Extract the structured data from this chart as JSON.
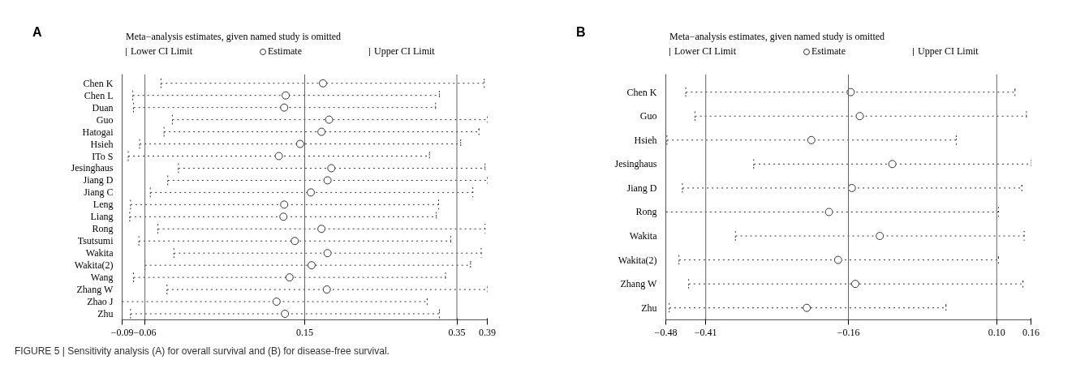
{
  "chart_data": [
    {
      "type": "scatter",
      "orientation": "horizontal",
      "title": "A",
      "subtitle": "Meta−analysis estimates, given named study is omitted",
      "categories": [
        "Chen K",
        "Chen L",
        "Duan",
        "Guo",
        "Hatogai",
        "Hsieh",
        "ITo S",
        "Jesinghaus",
        "Jiang D",
        "Jiang C",
        "Leng",
        "Liang",
        "Rong",
        "Tsutsumi",
        "Wakita",
        "Wakita(2)",
        "Wang",
        "Zhang W",
        "Zhao J",
        "Zhu"
      ],
      "series": [
        {
          "name": "Estimate",
          "color": "#333333",
          "values": [
            0.174,
            0.125,
            0.123,
            0.182,
            0.172,
            0.144,
            0.116,
            0.185,
            0.18,
            0.158,
            0.123,
            0.122,
            0.172,
            0.137,
            0.18,
            0.159,
            0.13,
            0.179,
            0.113,
            0.124
          ],
          "errors": [
            [
              -0.039,
              0.386
            ],
            [
              -0.076,
              0.327
            ],
            [
              -0.075,
              0.322
            ],
            [
              -0.024,
              0.39
            ],
            [
              -0.035,
              0.379
            ],
            [
              -0.067,
              0.355
            ],
            [
              -0.082,
              0.314
            ],
            [
              -0.016,
              0.387
            ],
            [
              -0.03,
              0.39
            ],
            [
              -0.053,
              0.371
            ],
            [
              -0.079,
              0.326
            ],
            [
              -0.08,
              0.323
            ],
            [
              -0.043,
              0.387
            ],
            [
              -0.068,
              0.342
            ],
            [
              -0.022,
              0.382
            ],
            [
              -0.06,
              0.368
            ],
            [
              -0.075,
              0.335
            ],
            [
              -0.031,
              0.39
            ],
            [
              -0.09,
              0.311
            ],
            [
              -0.079,
              0.327
            ]
          ]
        }
      ],
      "xlim": [
        -0.09,
        0.39
      ],
      "xticks": [
        {
          "value": -0.09,
          "label": "−0.09"
        },
        {
          "value": -0.06,
          "label": "−0.06"
        },
        0.15,
        0.35,
        0.39
      ],
      "ref_lines": [
        {
          "axis": "x",
          "value": -0.06,
          "color": "#666666"
        },
        {
          "axis": "x",
          "value": 0.15,
          "color": "#666666"
        },
        {
          "axis": "x",
          "value": 0.35,
          "color": "#666666"
        }
      ],
      "marker": "circle",
      "line_style": "dotted",
      "grid": false,
      "legend": "top",
      "annotations": [
        "Lower CI Limit",
        "Upper CI Limit"
      ]
    },
    {
      "type": "scatter",
      "orientation": "horizontal",
      "title": "B",
      "subtitle": "Meta−analysis estimates, given named study is omitted",
      "categories": [
        "Chen K",
        "Guo",
        "Hsieh",
        "Jesinghaus",
        "Jiang D",
        "Rong",
        "Wakita",
        "Wakita(2)",
        "Zhang W",
        "Zhu"
      ],
      "series": [
        {
          "name": "Estimate",
          "color": "#333333",
          "values": [
            -0.156,
            -0.14,
            -0.225,
            -0.083,
            -0.154,
            -0.194,
            -0.105,
            -0.178,
            -0.148,
            -0.233
          ],
          "errors": [
            [
              -0.445,
              0.132
            ],
            [
              -0.429,
              0.152
            ],
            [
              -0.478,
              0.029
            ],
            [
              -0.326,
              0.16
            ],
            [
              -0.451,
              0.144
            ],
            [
              -0.48,
              0.103
            ],
            [
              -0.358,
              0.148
            ],
            [
              -0.457,
              0.103
            ],
            [
              -0.44,
              0.146
            ],
            [
              -0.474,
              0.011
            ]
          ]
        }
      ],
      "xlim": [
        -0.48,
        0.16
      ],
      "xticks": [
        {
          "value": -0.48,
          "label": "−0.48"
        },
        {
          "value": -0.41,
          "label": "−0.41"
        },
        {
          "value": -0.16,
          "label": "−0.16"
        },
        {
          "value": 0.1,
          "label": "0.10"
        },
        0.16
      ],
      "ref_lines": [
        {
          "axis": "x",
          "value": -0.41,
          "color": "#666666"
        },
        {
          "axis": "x",
          "value": -0.16,
          "color": "#666666"
        },
        {
          "axis": "x",
          "value": 0.1,
          "color": "#666666"
        }
      ],
      "marker": "circle",
      "line_style": "dotted",
      "grid": false,
      "legend": "top",
      "annotations": [
        "Lower CI Limit",
        "Upper CI Limit",
        "FIGURE 5 | Sensitivity analysis (A) for overall survival and (B) for disease-free survival."
      ]
    }
  ]
}
